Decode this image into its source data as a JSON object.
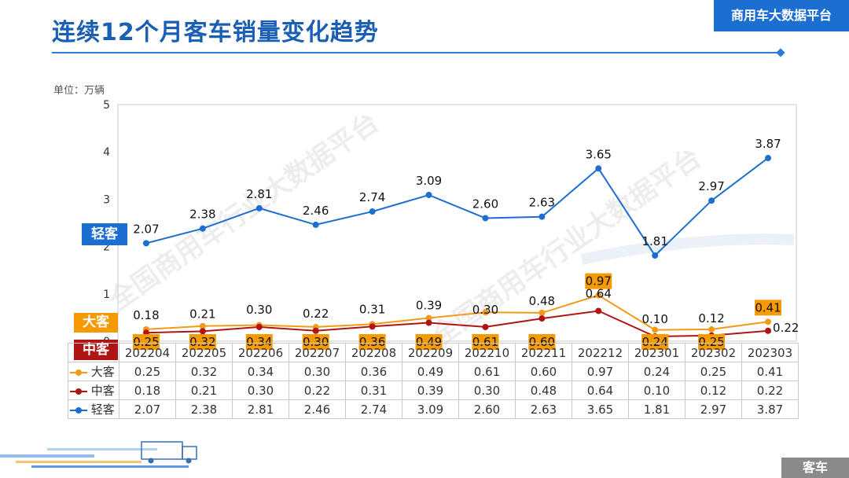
{
  "header": {
    "title": "连续12个月客车销量变化趋势",
    "badge": "商用车大数据平台"
  },
  "footer": {
    "tag": "客车"
  },
  "watermark": "全国商用车行业大数据平台",
  "colors": {
    "light": "#1c6ed1",
    "large": "#f29b1a",
    "medium": "#b01515",
    "tag_light": "#1c6ed1",
    "tag_large": "#f59a00",
    "tag_medium": "#b01515"
  },
  "chart_data": {
    "type": "line",
    "unit_label": "单位：万辆",
    "categories": [
      "202204",
      "202205",
      "202206",
      "202207",
      "202208",
      "202209",
      "202210",
      "202211",
      "202212",
      "202301",
      "202302",
      "202303"
    ],
    "ylim": [
      0,
      5
    ],
    "yticks": [
      0,
      1,
      2,
      3,
      4,
      5
    ],
    "series": [
      {
        "key": "large",
        "name": "大客",
        "values": [
          0.25,
          0.32,
          0.34,
          0.3,
          0.36,
          0.49,
          0.61,
          0.6,
          0.97,
          0.24,
          0.25,
          0.41
        ],
        "labels": [
          "0.25",
          "0.32",
          "0.34",
          "0.30",
          "0.36",
          "0.49",
          "0.61",
          "0.60",
          "0.97",
          "0.24",
          "0.25",
          "0.41"
        ]
      },
      {
        "key": "medium",
        "name": "中客",
        "values": [
          0.18,
          0.21,
          0.3,
          0.22,
          0.31,
          0.39,
          0.3,
          0.48,
          0.64,
          0.1,
          0.12,
          0.22
        ],
        "labels": [
          "0.18",
          "0.21",
          "0.30",
          "0.22",
          "0.31",
          "0.39",
          "0.30",
          "0.48",
          "0.64",
          "0.10",
          "0.12",
          "0.22"
        ]
      },
      {
        "key": "light",
        "name": "轻客",
        "values": [
          2.07,
          2.38,
          2.81,
          2.46,
          2.74,
          3.09,
          2.6,
          2.63,
          3.65,
          1.81,
          2.97,
          3.87
        ],
        "labels": [
          "2.07",
          "2.38",
          "2.81",
          "2.46",
          "2.74",
          "3.09",
          "2.60",
          "2.63",
          "3.65",
          "1.81",
          "2.97",
          "3.87"
        ]
      }
    ]
  }
}
